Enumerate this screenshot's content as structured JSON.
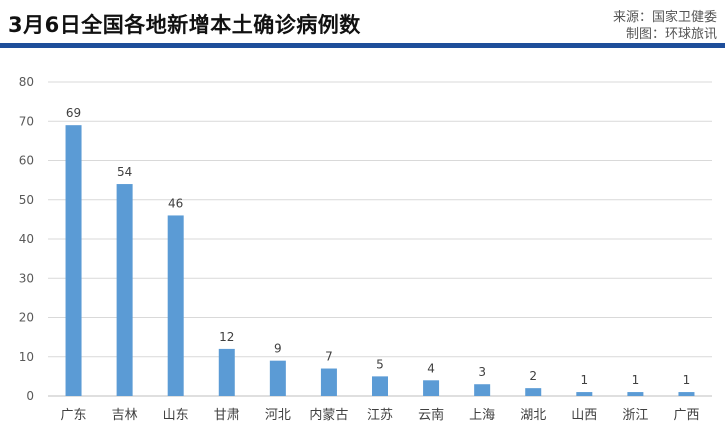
{
  "header": {
    "title": "3月6日全国各地新增本土确诊病例数",
    "source_line": "来源：国家卫健委",
    "made_by_line": "制图：环球旅讯"
  },
  "colors": {
    "bar": "#5b9bd5",
    "rule": "#1e4e9a",
    "grid": "#d9d9d9"
  },
  "chart_data": {
    "type": "bar",
    "title": "3月6日全国各地新增本土确诊病例数",
    "xlabel": "",
    "ylabel": "",
    "categories": [
      "广东",
      "吉林",
      "山东",
      "甘肃",
      "河北",
      "内蒙古",
      "江苏",
      "云南",
      "上海",
      "湖北",
      "山西",
      "浙江",
      "广西"
    ],
    "values": [
      69,
      54,
      46,
      12,
      9,
      7,
      5,
      4,
      3,
      2,
      1,
      1,
      1
    ],
    "ylim": [
      0,
      80
    ],
    "yticks": [
      0,
      10,
      20,
      30,
      40,
      50,
      60,
      70,
      80
    ],
    "grid": true,
    "legend": "none",
    "data_labels": true
  }
}
